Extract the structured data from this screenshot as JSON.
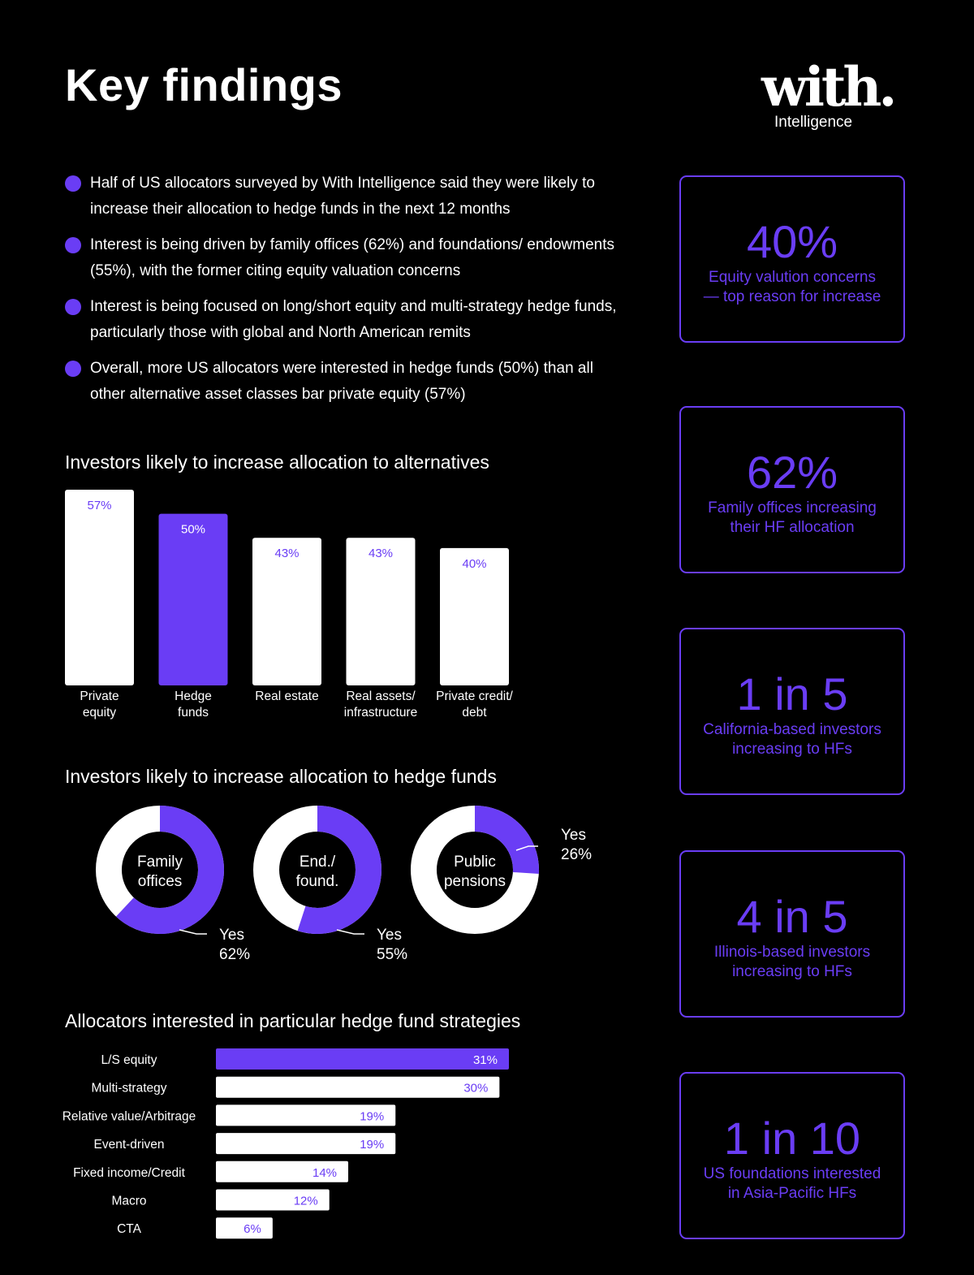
{
  "header": {
    "title": "Key findings",
    "logo_word": "with.",
    "logo_sub": "Intelligence"
  },
  "bullets": [
    "Half of US allocators surveyed by With Intelligence said they were likely to increase their allocation to hedge funds in the next 12 months",
    "Interest is being driven by family offices (62%) and foundations/ endowments (55%), with the former citing equity valuation concerns",
    "Interest is being focused on long/short equity and multi-strategy hedge funds, particularly those with global and North American remits",
    "Overall, more US allocators were interested in hedge funds (50%) than all other alternative asset classes bar private equity (57%)"
  ],
  "colors": {
    "accent": "#6a3df5",
    "bar_default": "#ffffff",
    "background": "#000000"
  },
  "stats": [
    {
      "value": "40%",
      "label_lines": [
        "Equity valution concerns",
        "— top reason for increase"
      ]
    },
    {
      "value": "62%",
      "label_lines": [
        "Family offices increasing",
        "their HF allocation"
      ]
    },
    {
      "value": "1 in 5",
      "label_lines": [
        "California-based investors",
        "increasing to HFs"
      ]
    },
    {
      "value": "4 in 5",
      "label_lines": [
        "Illinois-based investors",
        "increasing to HFs"
      ]
    },
    {
      "value": "1 in 10",
      "label_lines": [
        "US foundations interested",
        "in Asia-Pacific HFs"
      ]
    }
  ],
  "chart_data": [
    {
      "type": "bar",
      "title": "Investors likely to increase allocation to alternatives",
      "categories": [
        [
          "Private",
          "equity"
        ],
        [
          "Hedge",
          "funds"
        ],
        [
          "Real estate"
        ],
        [
          "Real assets/",
          "infrastructure"
        ],
        [
          "Private credit/",
          "debt"
        ]
      ],
      "values": [
        57,
        50,
        43,
        43,
        40
      ],
      "data_labels": [
        "57%",
        "50%",
        "43%",
        "43%",
        "40%"
      ],
      "highlight_index": 1,
      "ylim": [
        0,
        57
      ],
      "grid": false
    },
    {
      "type": "pie",
      "title": "Investors likely to increase allocation to hedge funds",
      "donuts": [
        {
          "label_lines": [
            "Family",
            "offices"
          ],
          "yes_value": 62,
          "callout_lines": [
            "Yes",
            "62%"
          ],
          "callout_side": "bottom-right"
        },
        {
          "label_lines": [
            "End./",
            "found."
          ],
          "yes_value": 55,
          "callout_lines": [
            "Yes",
            "55%"
          ],
          "callout_side": "bottom-right"
        },
        {
          "label_lines": [
            "Public",
            "pensions"
          ],
          "yes_value": 26,
          "callout_lines": [
            "Yes",
            "26%"
          ],
          "callout_side": "right"
        }
      ]
    },
    {
      "type": "bar",
      "orientation": "horizontal",
      "title": "Allocators interested in particular hedge fund strategies",
      "categories": [
        "L/S equity",
        "Multi-strategy",
        "Relative value/Arbitrage",
        "Event-driven",
        "Fixed income/Credit",
        "Macro",
        "CTA"
      ],
      "values": [
        31,
        30,
        19,
        19,
        14,
        12,
        6
      ],
      "data_labels": [
        "31%",
        "30%",
        "19%",
        "19%",
        "14%",
        "12%",
        "6%"
      ],
      "highlight_index": 0,
      "xlim": [
        0,
        31
      ],
      "grid": false
    }
  ]
}
